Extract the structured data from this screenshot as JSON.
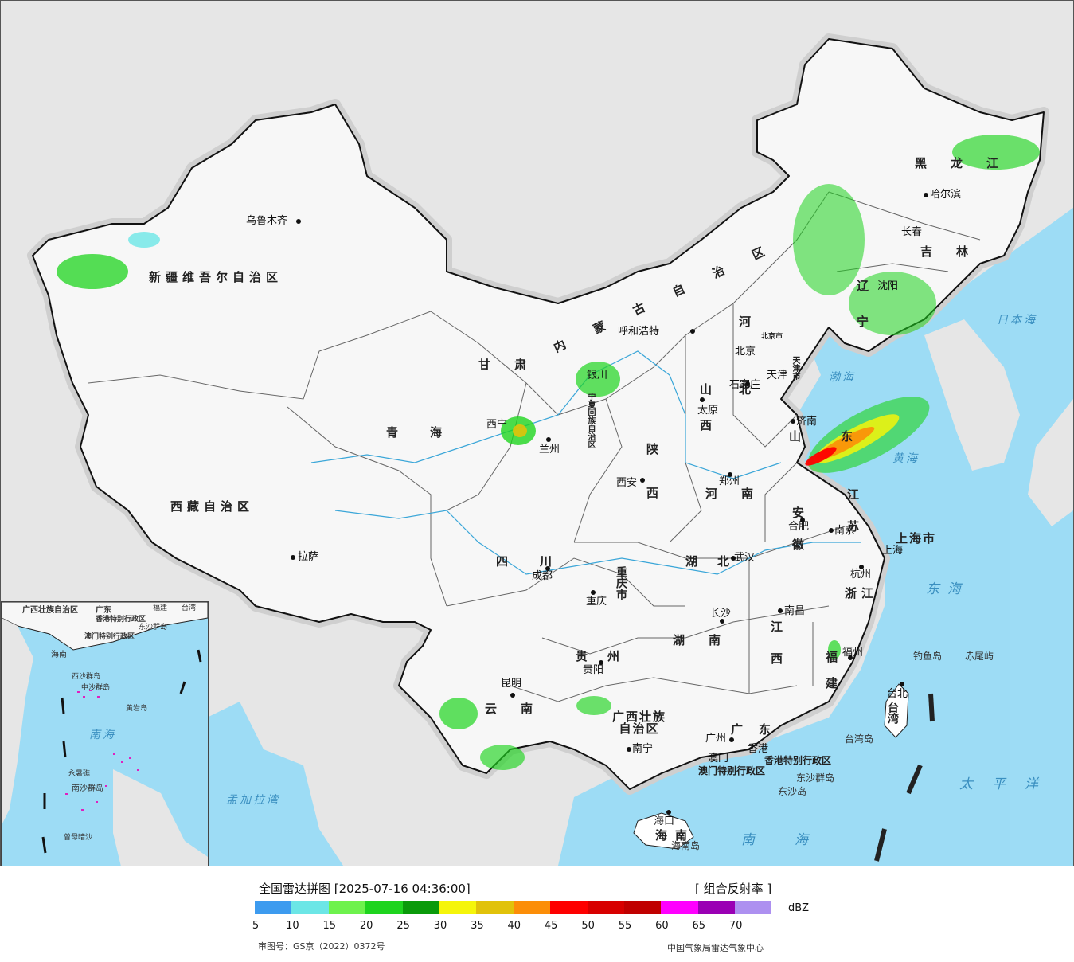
{
  "map": {
    "provinces": [
      "新疆维吾尔自治区",
      "西藏自治区",
      "青海",
      "甘肃",
      "内蒙古自治区",
      "宁夏回族自治区",
      "陕西",
      "山西",
      "河北",
      "北京市",
      "天津市",
      "辽宁",
      "吉林",
      "黑龙江",
      "山东",
      "河南",
      "江苏",
      "安徽",
      "上海市",
      "湖北",
      "四川",
      "重庆市",
      "贵州",
      "湖南",
      "江西",
      "浙江",
      "福建",
      "云南",
      "广西壮族自治区",
      "广东",
      "海南",
      "台湾",
      "香港特别行政区",
      "澳门特别行政区"
    ],
    "cities": [
      "乌鲁木齐",
      "拉萨",
      "西宁",
      "兰州",
      "银川",
      "呼和浩特",
      "北京",
      "天津",
      "石家庄",
      "太原",
      "济南",
      "郑州",
      "西安",
      "成都",
      "重庆",
      "武汉",
      "合肥",
      "南京",
      "上海",
      "杭州",
      "长沙",
      "南昌",
      "福州",
      "贵阳",
      "昆明",
      "南宁",
      "广州",
      "香港",
      "澳门",
      "海口",
      "哈尔滨",
      "长春",
      "沈阳",
      "台北"
    ],
    "seas": [
      "渤海",
      "黄海",
      "东海",
      "南海",
      "日本海",
      "太平洋",
      "孟加拉湾"
    ],
    "islands": [
      "钓鱼岛",
      "赤尾屿",
      "台湾岛",
      "海南岛",
      "东沙群岛",
      "东沙岛"
    ],
    "inset": {
      "labels": [
        "广西壮族自治区",
        "广东",
        "福建",
        "台湾",
        "香港特别行政区",
        "澳门特别行政区",
        "海南",
        "东沙群岛",
        "西沙群岛",
        "中沙群岛",
        "黄岩岛",
        "南海",
        "南沙群岛",
        "曾母暗沙",
        "永暑礁"
      ]
    }
  },
  "legend": {
    "title": "全国雷达拼图 [2025-07-16 04:36:00]",
    "product": "[ 组合反射率 ]",
    "unit": "dBZ",
    "ticks": [
      "5",
      "10",
      "15",
      "20",
      "25",
      "30",
      "35",
      "40",
      "45",
      "50",
      "55",
      "60",
      "65",
      "70"
    ],
    "colors": [
      "#3d9bef",
      "#6ce6e6",
      "#6ef24d",
      "#1ed41e",
      "#0a9a0a",
      "#f5f50a",
      "#e1c20a",
      "#fc8e08",
      "#fe0000",
      "#d80000",
      "#c00000",
      "#ff00ff",
      "#9a00b4",
      "#ad90f0"
    ],
    "review_number": "审图号：GS京（2022）0372号",
    "organization": "中国气象局雷达气象中心"
  }
}
